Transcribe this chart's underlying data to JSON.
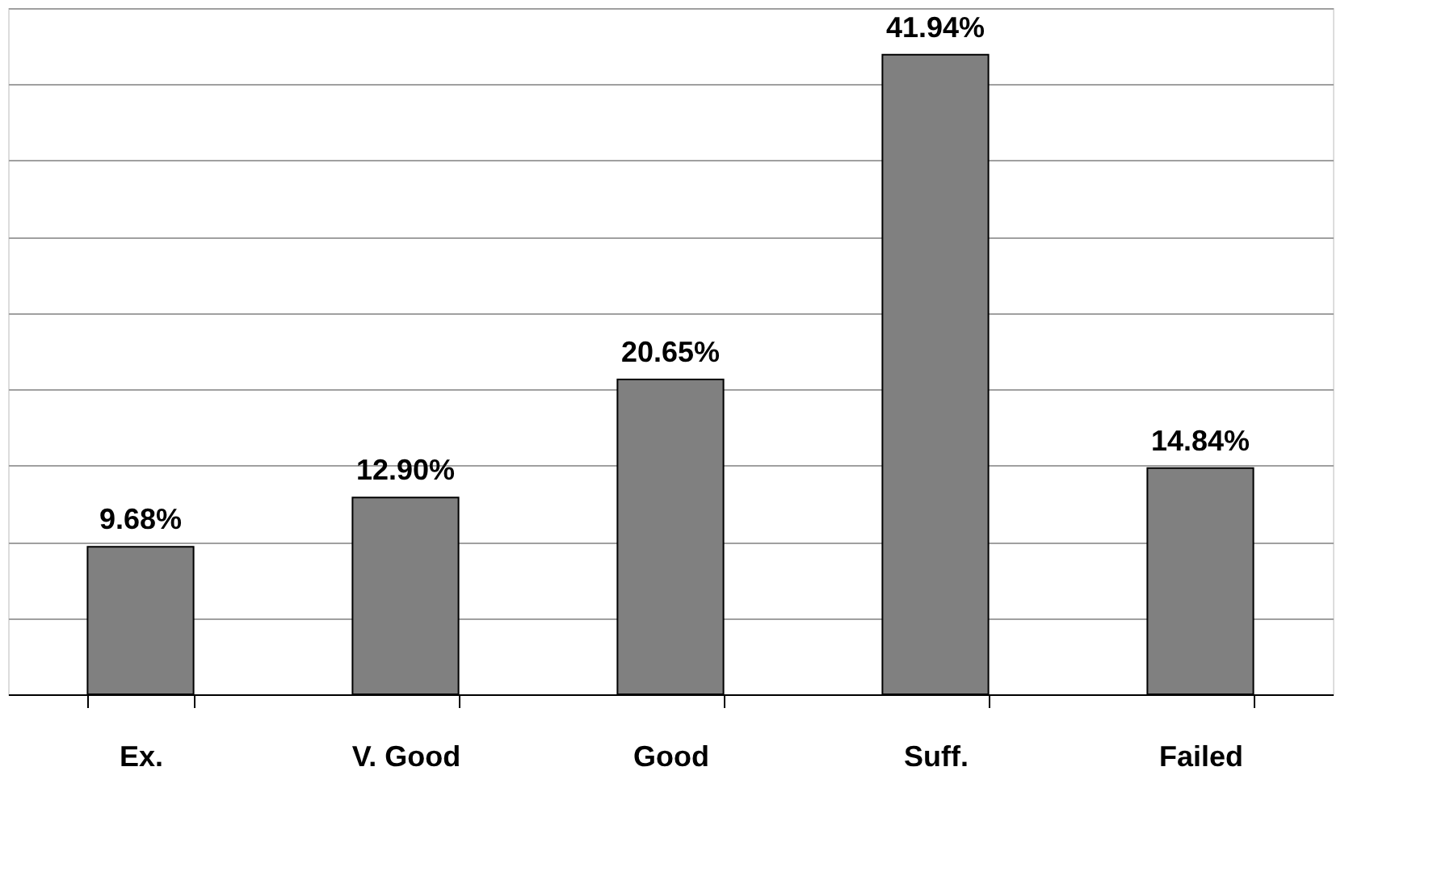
{
  "chart_data": {
    "type": "bar",
    "categories": [
      "Ex.",
      "V. Good",
      "Good",
      "Suff.",
      "Failed"
    ],
    "values": [
      9.68,
      12.9,
      20.65,
      41.94,
      14.84
    ],
    "value_labels": [
      "9.68%",
      "12.90%",
      "20.65%",
      "41.94%",
      "14.84%"
    ],
    "color": "#808080",
    "ylim": [
      0,
      45
    ],
    "yticks": [
      {
        "value": 0,
        "label": null
      },
      {
        "value": 5,
        "label": null
      },
      {
        "value": 10,
        "label": null
      },
      {
        "value": 15,
        "label": null
      },
      {
        "value": 20,
        "label": null
      },
      {
        "value": 25,
        "label": null
      },
      {
        "value": 30,
        "label": null
      },
      {
        "value": 35,
        "label": null
      },
      {
        "value": 40,
        "label": null
      },
      {
        "value": 45,
        "label": null
      }
    ],
    "grid": "y",
    "tick_labels": "x"
  }
}
